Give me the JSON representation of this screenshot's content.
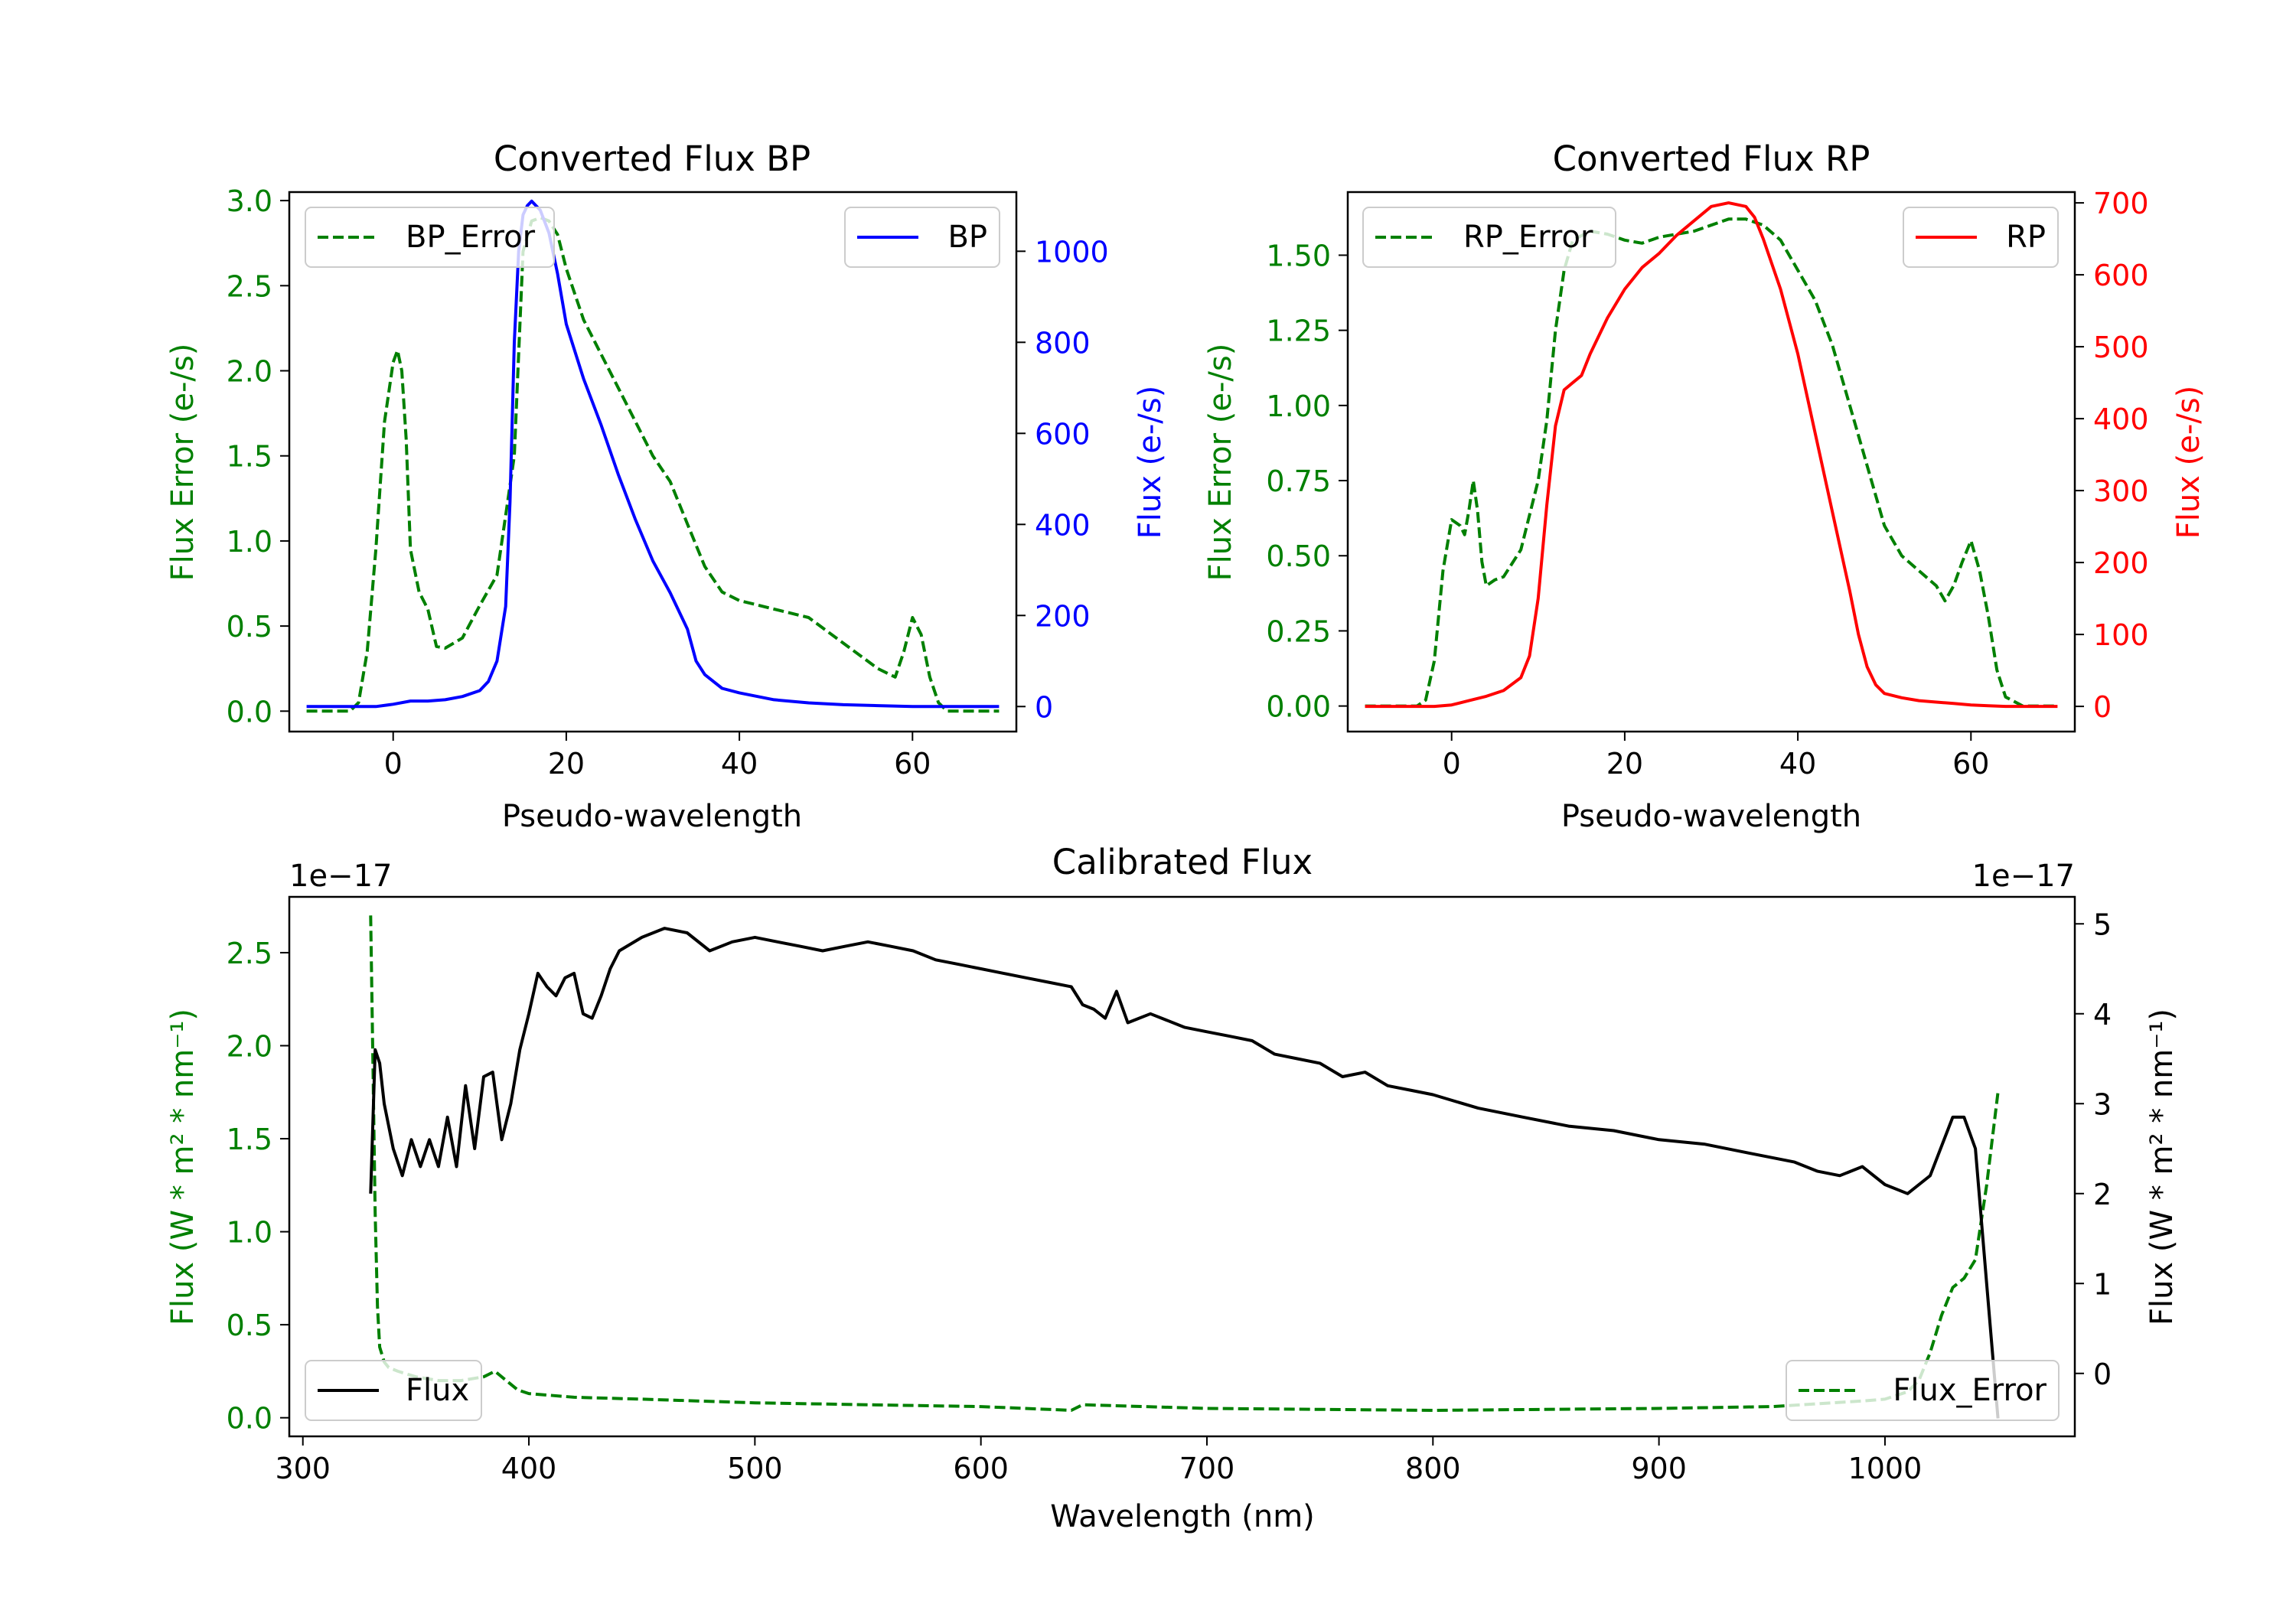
{
  "figure": {
    "sci_offset_text": "1e−17"
  },
  "chart_data": [
    {
      "id": "bp",
      "type": "line",
      "title": "Converted Flux BP",
      "xlabel": "Pseudo-wavelength",
      "ylabel_left": "Flux Error (e-/s)",
      "ylabel_right": "Flux (e-/s)",
      "xlim": [
        -12,
        72
      ],
      "ylim_left": [
        -0.12,
        3.05
      ],
      "ylim_right": [
        -55,
        1130
      ],
      "xticks": [
        0,
        20,
        40,
        60
      ],
      "yticks_left": [
        0.0,
        0.5,
        1.0,
        1.5,
        2.0,
        2.5,
        3.0
      ],
      "yticks_right": [
        0,
        200,
        400,
        600,
        800,
        1000
      ],
      "colors": {
        "left_axis": "#008000",
        "right_axis": "#0000ff"
      },
      "series": [
        {
          "name": "BP_Error",
          "axis": "left",
          "style": "dashed",
          "color": "#008000",
          "legend": "BP_Error",
          "legend_loc": "upper-left",
          "x": [
            -10,
            -5,
            -4,
            -3,
            -2,
            -1,
            0,
            0.5,
            1,
            1.5,
            2,
            3,
            4,
            5,
            6,
            8,
            10,
            12,
            14,
            15,
            16,
            17,
            18,
            19,
            20,
            22,
            24,
            26,
            28,
            30,
            32,
            34,
            36,
            38,
            40,
            44,
            48,
            52,
            56,
            58,
            59,
            60,
            61,
            62,
            63,
            64,
            66,
            70
          ],
          "y": [
            0.0,
            0.0,
            0.05,
            0.35,
            0.95,
            1.7,
            2.05,
            2.12,
            2.0,
            1.6,
            0.95,
            0.7,
            0.6,
            0.38,
            0.37,
            0.43,
            0.62,
            0.8,
            1.5,
            2.7,
            2.88,
            2.9,
            2.88,
            2.8,
            2.6,
            2.3,
            2.1,
            1.9,
            1.7,
            1.5,
            1.35,
            1.1,
            0.85,
            0.7,
            0.65,
            0.6,
            0.55,
            0.4,
            0.25,
            0.2,
            0.35,
            0.55,
            0.45,
            0.2,
            0.05,
            0.0,
            0.0,
            0.0
          ]
        },
        {
          "name": "BP",
          "axis": "right",
          "style": "solid",
          "color": "#0000ff",
          "legend": "BP",
          "legend_loc": "upper-right",
          "x": [
            -10,
            -2,
            0,
            2,
            4,
            6,
            8,
            10,
            11,
            12,
            13,
            13.5,
            14,
            14.5,
            15,
            15.5,
            16,
            17,
            18,
            19,
            20,
            22,
            24,
            26,
            28,
            30,
            32,
            34,
            35,
            36,
            38,
            40,
            44,
            48,
            52,
            56,
            60,
            64,
            70
          ],
          "y": [
            0,
            0,
            5,
            12,
            12,
            15,
            22,
            35,
            55,
            100,
            220,
            450,
            800,
            1000,
            1080,
            1100,
            1110,
            1090,
            1040,
            950,
            840,
            720,
            620,
            510,
            410,
            320,
            250,
            170,
            100,
            70,
            40,
            30,
            15,
            8,
            4,
            2,
            0,
            0,
            0
          ]
        }
      ]
    },
    {
      "id": "rp",
      "type": "line",
      "title": "Converted Flux RP",
      "xlabel": "Pseudo-wavelength",
      "ylabel_left": "Flux Error (e-/s)",
      "ylabel_right": "Flux (e-/s)",
      "xlim": [
        -12,
        72
      ],
      "ylim_left": [
        -0.085,
        1.71
      ],
      "ylim_right": [
        -35,
        715
      ],
      "xticks": [
        0,
        20,
        40,
        60
      ],
      "yticks_left": [
        0.0,
        0.25,
        0.5,
        0.75,
        1.0,
        1.25,
        1.5
      ],
      "yticks_right": [
        0,
        100,
        200,
        300,
        400,
        500,
        600,
        700
      ],
      "colors": {
        "left_axis": "#008000",
        "right_axis": "#ff0000"
      },
      "series": [
        {
          "name": "RP_Error",
          "axis": "left",
          "style": "dashed",
          "color": "#008000",
          "legend": "RP_Error",
          "legend_loc": "upper-left",
          "x": [
            -10,
            -4,
            -3,
            -2,
            -1,
            0,
            1,
            1.5,
            2,
            2.5,
            3,
            3.5,
            4,
            5,
            6,
            8,
            10,
            11,
            12,
            13,
            14,
            16,
            18,
            20,
            22,
            24,
            26,
            28,
            30,
            32,
            34,
            36,
            38,
            40,
            42,
            44,
            46,
            48,
            50,
            52,
            54,
            56,
            57,
            58,
            59,
            60,
            61,
            62,
            63,
            64,
            66,
            70
          ],
          "y": [
            0.0,
            0.0,
            0.02,
            0.15,
            0.45,
            0.62,
            0.6,
            0.57,
            0.65,
            0.75,
            0.65,
            0.48,
            0.4,
            0.42,
            0.43,
            0.52,
            0.75,
            0.95,
            1.25,
            1.45,
            1.55,
            1.58,
            1.57,
            1.55,
            1.54,
            1.56,
            1.57,
            1.58,
            1.6,
            1.62,
            1.62,
            1.6,
            1.55,
            1.45,
            1.35,
            1.2,
            1.0,
            0.8,
            0.6,
            0.5,
            0.45,
            0.4,
            0.35,
            0.4,
            0.48,
            0.55,
            0.45,
            0.3,
            0.12,
            0.03,
            0.0,
            0.0
          ]
        },
        {
          "name": "RP",
          "axis": "right",
          "style": "solid",
          "color": "#ff0000",
          "legend": "RP",
          "legend_loc": "upper-right",
          "x": [
            -10,
            -2,
            0,
            2,
            4,
            6,
            8,
            9,
            10,
            11,
            12,
            13,
            14,
            15,
            16,
            18,
            20,
            22,
            24,
            26,
            28,
            30,
            32,
            34,
            35,
            36,
            38,
            40,
            42,
            44,
            46,
            47,
            48,
            49,
            50,
            52,
            54,
            56,
            58,
            60,
            62,
            64,
            66,
            70
          ],
          "y": [
            0,
            0,
            2,
            8,
            14,
            22,
            40,
            70,
            150,
            280,
            390,
            440,
            450,
            460,
            490,
            540,
            580,
            610,
            630,
            655,
            675,
            695,
            700,
            695,
            680,
            650,
            580,
            490,
            380,
            270,
            160,
            100,
            55,
            30,
            18,
            12,
            8,
            6,
            4,
            2,
            1,
            0,
            0,
            0
          ]
        }
      ]
    },
    {
      "id": "cal",
      "type": "line",
      "title": "Calibrated Flux",
      "xlabel": "Wavelength (nm)",
      "ylabel_left": "Flux (W * m² * nm⁻¹)",
      "ylabel_right": "Flux (W * m² * nm⁻¹)",
      "offset_left": "1e−17",
      "offset_right": "1e−17",
      "xlim": [
        294,
        1084
      ],
      "ylim_left": [
        -0.1,
        2.8
      ],
      "ylim_right": [
        -0.7,
        5.3
      ],
      "xticks": [
        300,
        400,
        500,
        600,
        700,
        800,
        900,
        1000
      ],
      "yticks_left": [
        0.0,
        0.5,
        1.0,
        1.5,
        2.0,
        2.5
      ],
      "yticks_right": [
        0,
        1,
        2,
        3,
        4,
        5
      ],
      "colors": {
        "left_axis": "#008000",
        "right_axis": "#000000"
      },
      "series": [
        {
          "name": "Flux_Error",
          "axis": "left",
          "style": "dashed",
          "color": "#008000",
          "legend": "Flux_Error",
          "legend_loc": "lower-right",
          "x": [
            330,
            331,
            332,
            333,
            334,
            336,
            338,
            342,
            350,
            360,
            370,
            380,
            385,
            390,
            395,
            400,
            420,
            450,
            500,
            550,
            600,
            640,
            645,
            700,
            800,
            900,
            950,
            990,
            1000,
            1010,
            1015,
            1020,
            1025,
            1030,
            1035,
            1040,
            1045,
            1050
          ],
          "y": [
            2.7,
            1.9,
            1.1,
            0.6,
            0.38,
            0.3,
            0.27,
            0.25,
            0.22,
            0.2,
            0.2,
            0.22,
            0.25,
            0.2,
            0.15,
            0.13,
            0.11,
            0.1,
            0.08,
            0.07,
            0.06,
            0.04,
            0.07,
            0.05,
            0.04,
            0.05,
            0.06,
            0.09,
            0.1,
            0.14,
            0.2,
            0.35,
            0.55,
            0.7,
            0.75,
            0.85,
            1.25,
            1.75
          ]
        },
        {
          "name": "Flux",
          "axis": "right",
          "style": "solid",
          "color": "#000000",
          "legend": "Flux",
          "legend_loc": "lower-left",
          "x": [
            330,
            332,
            334,
            336,
            338,
            340,
            344,
            348,
            352,
            356,
            360,
            364,
            368,
            372,
            376,
            380,
            384,
            388,
            392,
            396,
            400,
            404,
            408,
            412,
            416,
            420,
            424,
            428,
            432,
            436,
            440,
            450,
            460,
            470,
            480,
            490,
            500,
            510,
            520,
            530,
            540,
            550,
            560,
            570,
            580,
            590,
            600,
            610,
            620,
            630,
            640,
            645,
            650,
            655,
            660,
            665,
            670,
            675,
            680,
            690,
            700,
            710,
            720,
            730,
            740,
            750,
            760,
            770,
            780,
            790,
            800,
            820,
            840,
            860,
            880,
            900,
            920,
            940,
            960,
            970,
            980,
            990,
            1000,
            1010,
            1020,
            1030,
            1035,
            1040,
            1045,
            1050
          ],
          "y": [
            2.0,
            3.6,
            3.45,
            3.0,
            2.75,
            2.5,
            2.2,
            2.6,
            2.3,
            2.6,
            2.3,
            2.85,
            2.3,
            3.2,
            2.5,
            3.3,
            3.35,
            2.6,
            3.0,
            3.6,
            4.0,
            4.45,
            4.3,
            4.2,
            4.4,
            4.45,
            4.0,
            3.95,
            4.2,
            4.5,
            4.7,
            4.85,
            4.95,
            4.9,
            4.7,
            4.8,
            4.85,
            4.8,
            4.75,
            4.7,
            4.75,
            4.8,
            4.75,
            4.7,
            4.6,
            4.55,
            4.5,
            4.45,
            4.4,
            4.35,
            4.3,
            4.1,
            4.05,
            3.95,
            4.25,
            3.9,
            3.95,
            4.0,
            3.95,
            3.85,
            3.8,
            3.75,
            3.7,
            3.55,
            3.5,
            3.45,
            3.3,
            3.35,
            3.2,
            3.15,
            3.1,
            2.95,
            2.85,
            2.75,
            2.7,
            2.6,
            2.55,
            2.45,
            2.35,
            2.25,
            2.2,
            2.3,
            2.1,
            2.0,
            2.2,
            2.85,
            2.85,
            2.5,
            1.0,
            -0.5
          ]
        }
      ]
    }
  ]
}
